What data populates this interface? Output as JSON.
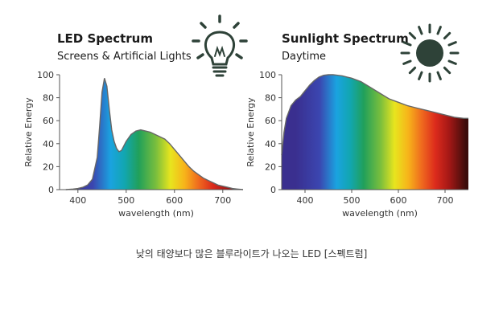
{
  "caption": "낮의 태양보다 많은 블루라이트가 나오는 LED [스펙트럼]",
  "colors": {
    "icon": "#2e4238",
    "axis": "#555555",
    "outline": "#666666"
  },
  "chart_data": [
    {
      "type": "area",
      "title": "LED Spectrum",
      "subtitle": "Screens & Artificial Lights",
      "icon": "light-bulb-icon",
      "xlabel": "wavelength (nm)",
      "ylabel": "Relative Energy",
      "xlim": [
        362,
        742
      ],
      "ylim": [
        0,
        100
      ],
      "x_ticks": [
        400,
        500,
        600,
        700
      ],
      "y_ticks": [
        0,
        20,
        40,
        60,
        80,
        100
      ],
      "series": [
        {
          "x": [
            375,
            390,
            400,
            410,
            420,
            430,
            440,
            445,
            450,
            455,
            460,
            465,
            470,
            475,
            480,
            485,
            490,
            495,
            500,
            510,
            520,
            530,
            540,
            550,
            560,
            570,
            580,
            590,
            600,
            610,
            620,
            630,
            640,
            650,
            660,
            670,
            680,
            690,
            700,
            710,
            720,
            730,
            742
          ],
          "y": [
            0,
            0.5,
            1,
            2,
            4,
            9,
            28,
            55,
            85,
            97,
            90,
            70,
            52,
            42,
            36,
            33,
            34,
            38,
            42,
            48,
            51,
            52,
            51,
            50,
            48,
            46,
            44,
            40,
            35,
            30,
            25,
            20,
            16,
            13,
            10,
            8,
            6,
            4,
            3,
            2,
            1,
            0.5,
            0
          ]
        }
      ]
    },
    {
      "type": "area",
      "title": "Sunlight Spectrum",
      "subtitle": "Daytime",
      "icon": "sun-icon",
      "xlabel": "wavelength (nm)",
      "ylabel": "Relative Energy",
      "xlim": [
        350,
        750
      ],
      "ylim": [
        0,
        100
      ],
      "x_ticks": [
        400,
        500,
        600,
        700
      ],
      "y_ticks": [
        0,
        20,
        40,
        60,
        80,
        100
      ],
      "series": [
        {
          "x": [
            350,
            355,
            360,
            370,
            380,
            390,
            400,
            410,
            420,
            430,
            440,
            450,
            460,
            470,
            480,
            490,
            500,
            520,
            540,
            560,
            580,
            600,
            620,
            640,
            660,
            680,
            700,
            720,
            740,
            750
          ],
          "y": [
            30,
            50,
            62,
            73,
            78,
            81,
            86,
            91,
            95,
            98,
            99.5,
            100,
            100,
            99.5,
            99,
            98,
            97,
            94,
            89,
            84,
            79,
            76,
            73,
            71,
            69,
            67,
            65,
            63,
            62,
            62
          ]
        }
      ]
    }
  ]
}
